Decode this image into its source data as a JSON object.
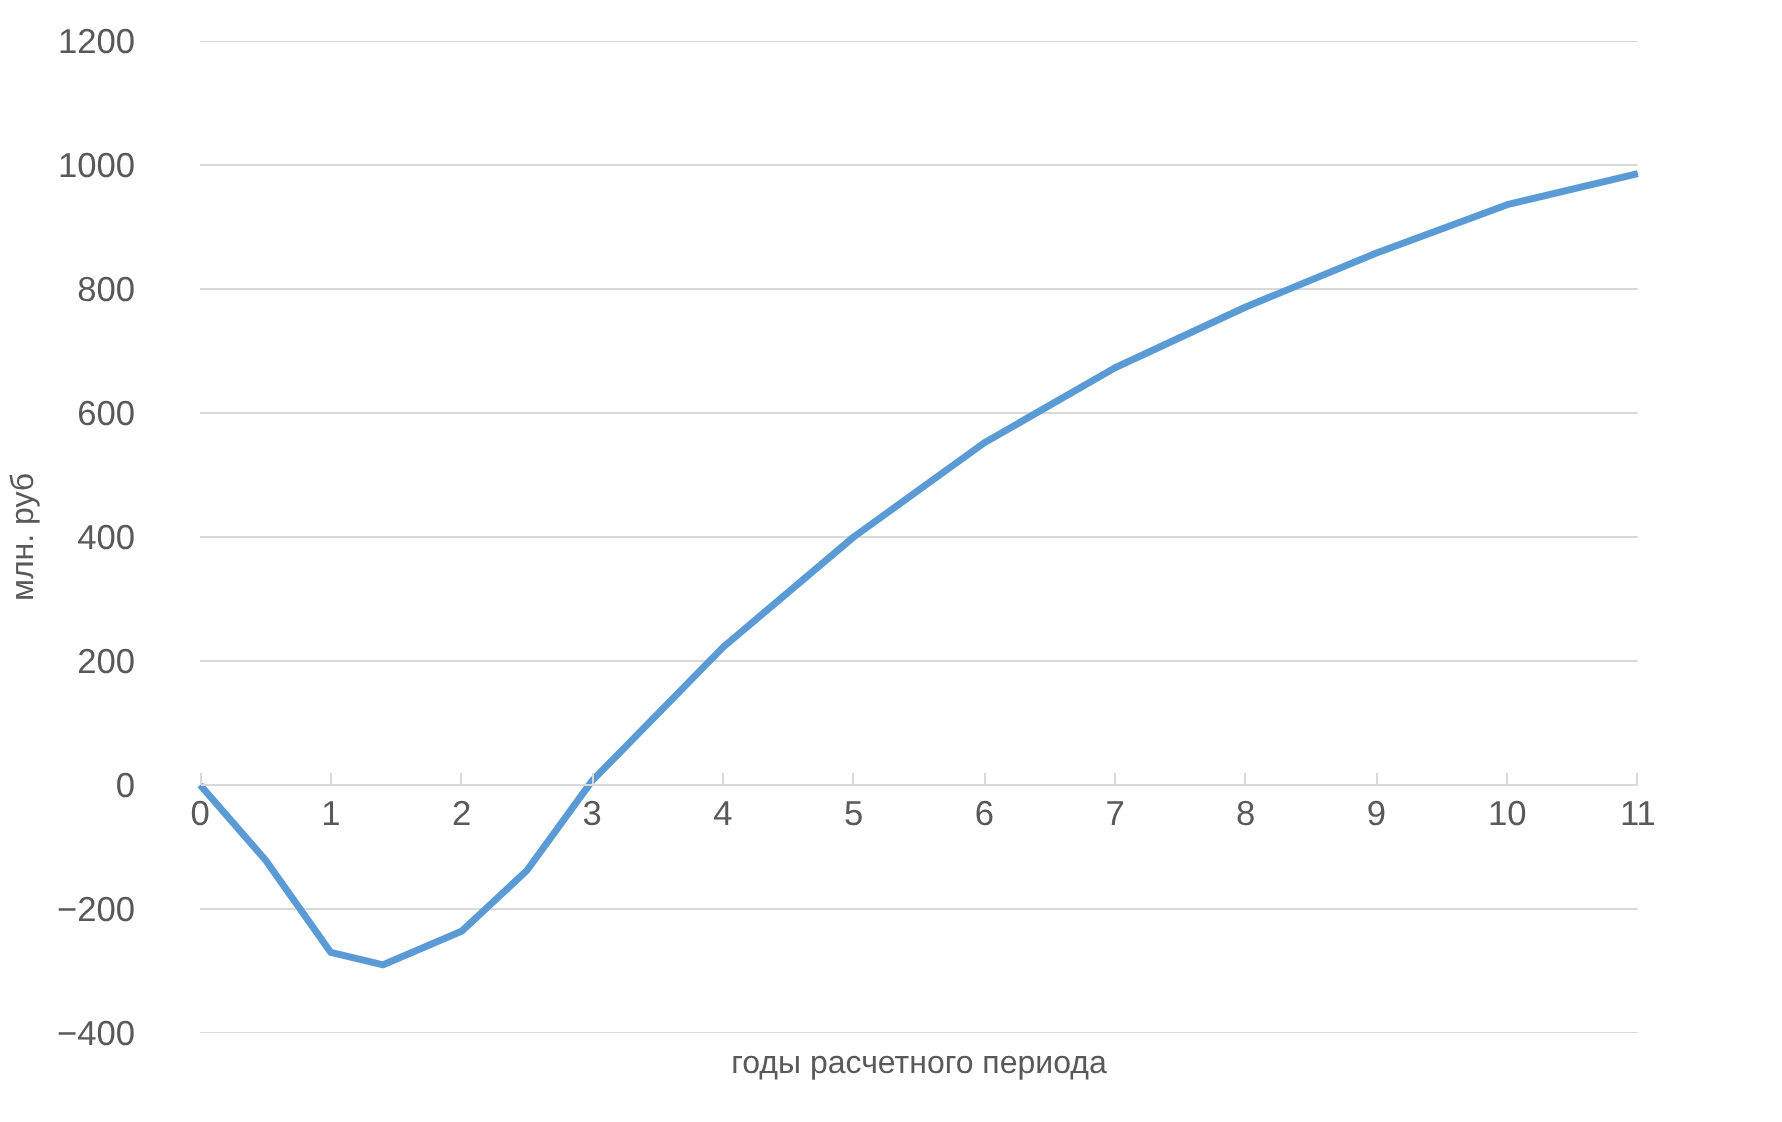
{
  "chart_data": {
    "type": "line",
    "xlabel": "годы расчетного периода",
    "ylabel": "млн. руб",
    "x": [
      0,
      0.5,
      1,
      1.4,
      2,
      2.5,
      3,
      4,
      5,
      6,
      7,
      8,
      9,
      10,
      11
    ],
    "series": [
      {
        "color": "#5b9bd5",
        "values": [
          0,
          -121,
          -270,
          -290,
          -236,
          -138,
          7,
          222,
          400,
          552,
          673,
          771,
          858,
          936,
          986
        ]
      }
    ],
    "xlim": [
      0,
      11
    ],
    "xticks": [
      0,
      1,
      2,
      3,
      4,
      5,
      6,
      7,
      8,
      9,
      10,
      11
    ],
    "ylim": [
      -400,
      1200
    ],
    "yticks": [
      -400,
      -200,
      0,
      200,
      400,
      600,
      800,
      1000,
      1200
    ],
    "grid": "y",
    "marker": "none",
    "line_style": "solid"
  }
}
